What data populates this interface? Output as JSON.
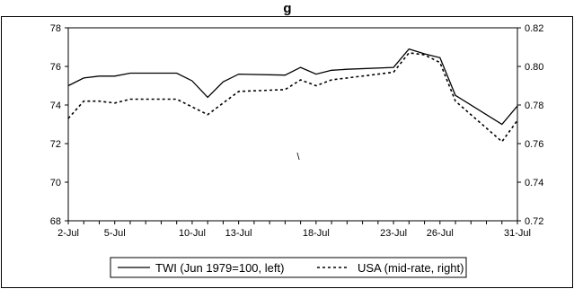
{
  "chart_data": {
    "type": "line",
    "title": "g",
    "x": [
      "2-Jul",
      "3-Jul",
      "4-Jul",
      "5-Jul",
      "6-Jul",
      "7-Jul",
      "8-Jul",
      "9-Jul",
      "10-Jul",
      "11-Jul",
      "12-Jul",
      "13-Jul",
      "14-Jul",
      "15-Jul",
      "16-Jul",
      "17-Jul",
      "18-Jul",
      "19-Jul",
      "20-Jul",
      "21-Jul",
      "22-Jul",
      "23-Jul",
      "24-Jul",
      "25-Jul",
      "26-Jul",
      "27-Jul",
      "28-Jul",
      "29-Jul",
      "30-Jul",
      "31-Jul"
    ],
    "x_tick_labels": [
      "2-Jul",
      "5-Jul",
      "10-Jul",
      "13-Jul",
      "18-Jul",
      "23-Jul",
      "26-Jul",
      "31-Jul"
    ],
    "ylim_left": [
      68,
      78
    ],
    "yticks_left": [
      "68",
      "70",
      "72",
      "74",
      "76",
      "78"
    ],
    "ylim_right": [
      0.72,
      0.82
    ],
    "yticks_right": [
      "0.72",
      "0.74",
      "0.76",
      "0.78",
      "0.80",
      "0.82"
    ],
    "series": [
      {
        "name": "TWI (Jun 1979=100, left)",
        "axis": "left",
        "style": "solid",
        "x": [
          "2-Jul",
          "3-Jul",
          "4-Jul",
          "5-Jul",
          "6-Jul",
          "9-Jul",
          "10-Jul",
          "11-Jul",
          "12-Jul",
          "13-Jul",
          "16-Jul",
          "17-Jul",
          "18-Jul",
          "19-Jul",
          "20-Jul",
          "23-Jul",
          "24-Jul",
          "25-Jul",
          "26-Jul",
          "27-Jul",
          "30-Jul",
          "31-Jul"
        ],
        "values": [
          75.0,
          75.4,
          75.5,
          75.5,
          75.65,
          75.65,
          75.25,
          74.4,
          75.2,
          75.6,
          75.55,
          75.95,
          75.6,
          75.8,
          75.85,
          75.95,
          76.9,
          76.65,
          76.45,
          74.5,
          73.0,
          73.95
        ]
      },
      {
        "name": "USA (mid-rate, right)",
        "axis": "right",
        "style": "dashed",
        "x": [
          "2-Jul",
          "3-Jul",
          "4-Jul",
          "5-Jul",
          "6-Jul",
          "9-Jul",
          "10-Jul",
          "11-Jul",
          "12-Jul",
          "13-Jul",
          "16-Jul",
          "17-Jul",
          "18-Jul",
          "19-Jul",
          "20-Jul",
          "23-Jul",
          "24-Jul",
          "25-Jul",
          "26-Jul",
          "27-Jul",
          "30-Jul",
          "31-Jul"
        ],
        "values": [
          0.773,
          0.782,
          0.782,
          0.781,
          0.783,
          0.783,
          0.779,
          0.775,
          0.781,
          0.787,
          0.788,
          0.793,
          0.79,
          0.793,
          0.794,
          0.797,
          0.807,
          0.806,
          0.802,
          0.782,
          0.761,
          0.772
        ]
      }
    ],
    "annotation": "\\",
    "grid": false,
    "legend_position": "bottom"
  },
  "colors": {
    "line": "#000000",
    "frame": "#000000",
    "background": "#ffffff"
  }
}
